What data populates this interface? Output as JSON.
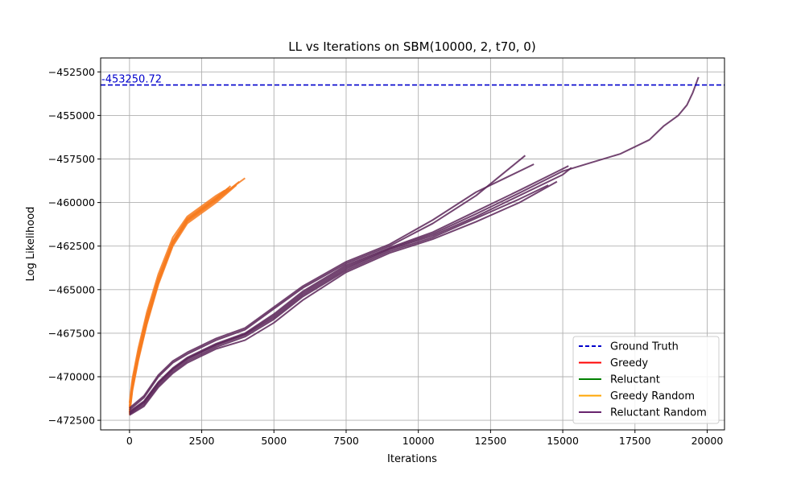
{
  "chart_data": {
    "type": "line",
    "title": "LL vs Iterations on SBM(10000, 2, t70, 0)",
    "xlabel": "Iterations",
    "ylabel": "Log Likelihood",
    "xlim": [
      -1000,
      20600
    ],
    "ylim": [
      -473050,
      -451700
    ],
    "xticks": [
      0,
      2500,
      5000,
      7500,
      10000,
      12500,
      15000,
      17500,
      20000
    ],
    "yticks": [
      -472500,
      -470000,
      -467500,
      -465000,
      -462500,
      -460000,
      -457500,
      -455000,
      -452500
    ],
    "xtick_labels": [
      "0",
      "2500",
      "5000",
      "7500",
      "10000",
      "12500",
      "15000",
      "17500",
      "20000"
    ],
    "ytick_labels": [
      "−472500",
      "−470000",
      "−467500",
      "−465000",
      "−462500",
      "−460000",
      "−457500",
      "−455000",
      "−452500"
    ],
    "grid": true,
    "legend_position": "lower-right",
    "reference_line": {
      "y": -453250.72,
      "label": "-453250.72",
      "color": "#0000cc",
      "style": "dashed"
    },
    "legend": [
      {
        "label": "Ground Truth",
        "color": "#0000cc",
        "style": "dashed"
      },
      {
        "label": "Greedy",
        "color": "#ff0000",
        "style": "solid"
      },
      {
        "label": "Reluctant",
        "color": "#008000",
        "style": "solid"
      },
      {
        "label": "Greedy Random",
        "color": "#ffa500",
        "style": "solid"
      },
      {
        "label": "Reluctant Random",
        "color": "#68246d",
        "style": "solid"
      }
    ],
    "series": [
      {
        "name": "Greedy Random",
        "color": "#f77b1e",
        "runs": [
          {
            "x": [
              0,
              100,
              300,
              600,
              1000,
              1500,
              2000,
              2500,
              3000,
              3500,
              4000
            ],
            "y": [
              -472000,
              -470600,
              -468900,
              -466800,
              -464500,
              -462300,
              -461000,
              -460400,
              -459800,
              -459200,
              -458600
            ]
          },
          {
            "x": [
              0,
              100,
              300,
              600,
              1000,
              1500,
              2000,
              2500,
              3000,
              3400
            ],
            "y": [
              -471700,
              -470300,
              -468600,
              -466500,
              -464300,
              -462200,
              -460900,
              -460300,
              -459700,
              -459200
            ]
          },
          {
            "x": [
              0,
              100,
              300,
              600,
              1000,
              1500,
              2000,
              2500,
              3000,
              3600
            ],
            "y": [
              -472100,
              -470700,
              -469000,
              -466900,
              -464600,
              -462400,
              -461100,
              -460500,
              -459900,
              -459100
            ]
          },
          {
            "x": [
              0,
              100,
              300,
              600,
              1000,
              1500,
              2000,
              2500,
              3000,
              3300
            ],
            "y": [
              -471500,
              -470100,
              -468400,
              -466300,
              -464100,
              -462000,
              -460800,
              -460200,
              -459600,
              -459300
            ]
          },
          {
            "x": [
              0,
              100,
              300,
              600,
              1000,
              1500,
              2000,
              2500,
              3000,
              3700
            ],
            "y": [
              -472200,
              -470800,
              -469100,
              -467000,
              -464700,
              -462500,
              -461200,
              -460600,
              -460000,
              -459000
            ]
          },
          {
            "x": [
              0,
              100,
              300,
              600,
              1000,
              1500,
              2000,
              2500,
              3000,
              3500
            ],
            "y": [
              -471800,
              -470400,
              -468700,
              -466600,
              -464400,
              -462250,
              -460950,
              -460350,
              -459750,
              -459050
            ]
          },
          {
            "x": [
              0,
              100,
              300,
              600,
              1000,
              1500,
              2000,
              2500,
              3000,
              3800
            ],
            "y": [
              -472050,
              -470650,
              -468950,
              -466850,
              -464550,
              -462350,
              -461050,
              -460450,
              -459850,
              -458800
            ]
          },
          {
            "x": [
              0,
              100,
              300,
              600,
              1000,
              1500,
              2000,
              2500,
              3000,
              3450
            ],
            "y": [
              -471900,
              -470500,
              -468800,
              -466700,
              -464450,
              -462300,
              -461000,
              -460380,
              -459780,
              -459150
            ]
          }
        ]
      },
      {
        "name": "Reluctant Random",
        "color": "#5a2458",
        "runs": [
          {
            "x": [
              0,
              500,
              1000,
              1500,
              2000,
              2500,
              3000,
              4000,
              5000,
              6000,
              7500,
              9000,
              10500,
              12000,
              13500,
              15000,
              15300
            ],
            "y": [
              -472100,
              -471500,
              -470400,
              -469600,
              -469000,
              -468600,
              -468200,
              -467600,
              -466600,
              -465300,
              -463800,
              -462700,
              -461900,
              -460800,
              -459600,
              -458400,
              -458000
            ]
          },
          {
            "x": [
              0,
              500,
              1000,
              1500,
              2000,
              2500,
              3000,
              4000,
              5000,
              6000,
              7500,
              9000,
              10500,
              12000,
              13700
            ],
            "y": [
              -471900,
              -471200,
              -470000,
              -469200,
              -468700,
              -468300,
              -467900,
              -467300,
              -466100,
              -464900,
              -463500,
              -462500,
              -461200,
              -459600,
              -457300
            ]
          },
          {
            "x": [
              0,
              500,
              1000,
              1500,
              2000,
              2500,
              3000,
              4000,
              5000,
              6000,
              7500,
              9000,
              10500,
              12000,
              13500,
              14800
            ],
            "y": [
              -472200,
              -471700,
              -470600,
              -469800,
              -469200,
              -468800,
              -468400,
              -467900,
              -466900,
              -465600,
              -464000,
              -462900,
              -462100,
              -461100,
              -460000,
              -458800
            ]
          },
          {
            "x": [
              0,
              500,
              1000,
              1500,
              2000,
              2500,
              3000,
              4000,
              5000,
              6000,
              7500,
              9000,
              10500,
              12000,
              13500,
              15200
            ],
            "y": [
              -472000,
              -471400,
              -470300,
              -469500,
              -468900,
              -468500,
              -468100,
              -467500,
              -466400,
              -465100,
              -463600,
              -462600,
              -461700,
              -460500,
              -459300,
              -457900
            ]
          },
          {
            "x": [
              0,
              500,
              1000,
              1500,
              2000,
              2500,
              3000,
              4000,
              5000,
              6000,
              7500,
              9000,
              10500,
              12000,
              13500,
              14500
            ],
            "y": [
              -472150,
              -471600,
              -470500,
              -469700,
              -469100,
              -468700,
              -468300,
              -467700,
              -466700,
              -465400,
              -463900,
              -462800,
              -462000,
              -460900,
              -459800,
              -459000
            ]
          },
          {
            "x": [
              0,
              500,
              1000,
              1500,
              2000,
              2500,
              3000,
              4000,
              5000,
              6000,
              7500,
              9000,
              10500,
              12000,
              13000,
              14000
            ],
            "y": [
              -471800,
              -471100,
              -469900,
              -469100,
              -468600,
              -468200,
              -467800,
              -467200,
              -466000,
              -464800,
              -463400,
              -462400,
              -461000,
              -459400,
              -458600,
              -457800
            ]
          },
          {
            "x": [
              0,
              500,
              1000,
              1500,
              2000,
              2500,
              3000,
              4000,
              5000,
              6000,
              7500,
              9000,
              10500,
              12000,
              13500,
              15000,
              16000,
              17000,
              18000,
              18500,
              19000,
              19300,
              19500,
              19700
            ],
            "y": [
              -472050,
              -471450,
              -470350,
              -469550,
              -468950,
              -468550,
              -468150,
              -467550,
              -466500,
              -465200,
              -463700,
              -462650,
              -461800,
              -460650,
              -459450,
              -458200,
              -457700,
              -457200,
              -456400,
              -455600,
              -455000,
              -454400,
              -453700,
              -452800
            ]
          }
        ]
      }
    ]
  }
}
